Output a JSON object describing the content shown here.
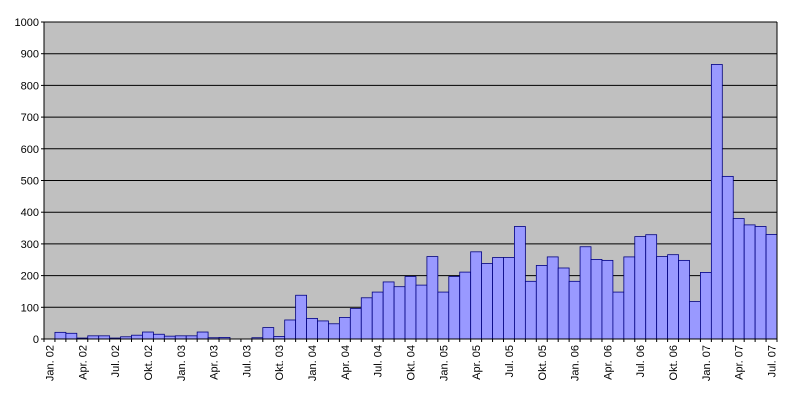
{
  "chart_data": {
    "type": "bar",
    "title": "",
    "xlabel": "",
    "ylabel": "",
    "ylim": [
      0,
      1000
    ],
    "yticks": [
      0,
      100,
      200,
      300,
      400,
      500,
      600,
      700,
      800,
      900,
      1000
    ],
    "grid": true,
    "legend": "none",
    "colors": {
      "bar_fill": "#9999ff",
      "bar_stroke": "#000080",
      "plot_bg": "#c0c0c0",
      "gridline": "#000000"
    },
    "x_tick_labels": [
      {
        "index": 0,
        "label": "Jan. 02"
      },
      {
        "index": 3,
        "label": "Apr. 02"
      },
      {
        "index": 6,
        "label": "Jul. 02"
      },
      {
        "index": 9,
        "label": "Okt. 02"
      },
      {
        "index": 12,
        "label": "Jan. 03"
      },
      {
        "index": 15,
        "label": "Apr. 03"
      },
      {
        "index": 18,
        "label": "Jul. 03"
      },
      {
        "index": 21,
        "label": "Okt. 03"
      },
      {
        "index": 24,
        "label": "Jan. 04"
      },
      {
        "index": 27,
        "label": "Apr. 04"
      },
      {
        "index": 30,
        "label": "Jul. 04"
      },
      {
        "index": 33,
        "label": "Okt. 04"
      },
      {
        "index": 36,
        "label": "Jan. 05"
      },
      {
        "index": 39,
        "label": "Apr. 05"
      },
      {
        "index": 42,
        "label": "Jul. 05"
      },
      {
        "index": 45,
        "label": "Okt. 05"
      },
      {
        "index": 48,
        "label": "Jan. 06"
      },
      {
        "index": 51,
        "label": "Apr. 06"
      },
      {
        "index": 54,
        "label": "Jul. 06"
      },
      {
        "index": 57,
        "label": "Okt. 06"
      },
      {
        "index": 60,
        "label": "Jan. 07"
      },
      {
        "index": 63,
        "label": "Apr. 07"
      },
      {
        "index": 66,
        "label": "Jul. 07"
      }
    ],
    "series": [
      {
        "values": [
          0,
          21,
          18,
          3,
          10,
          10,
          3,
          7,
          12,
          22,
          15,
          9,
          10,
          10,
          22,
          4,
          5,
          0,
          0,
          4,
          36,
          8,
          60,
          138,
          65,
          57,
          48,
          68,
          96,
          130,
          148,
          180,
          165,
          197,
          170,
          260,
          148,
          197,
          211,
          275,
          238,
          257,
          257,
          355,
          182,
          232,
          259,
          224,
          182,
          291,
          251,
          248,
          148,
          259,
          323,
          329,
          260,
          266,
          248,
          118,
          210,
          866,
          513,
          380,
          360,
          355,
          330
        ]
      }
    ]
  }
}
